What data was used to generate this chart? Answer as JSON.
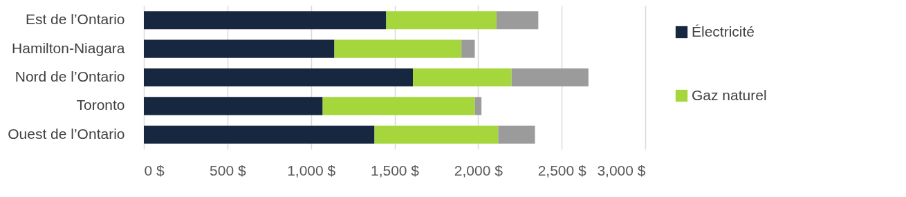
{
  "chart_data": {
    "type": "bar",
    "orientation": "horizontal",
    "stacked": true,
    "categories": [
      "Est de l’Ontario",
      "Hamilton-Niagara",
      "Nord de l’Ontario",
      "Toronto",
      "Ouest de l’Ontario"
    ],
    "series": [
      {
        "name": "Électricité",
        "color": "#17273f",
        "values": [
          1450,
          1140,
          1610,
          1070,
          1380
        ]
      },
      {
        "name": "Gaz naturel",
        "color": "#a5d63b",
        "values": [
          660,
          760,
          590,
          910,
          740
        ]
      },
      {
        "color": "#9b9b9b",
        "values": [
          250,
          80,
          460,
          40,
          220
        ]
      }
    ],
    "xlim": [
      0,
      3000
    ],
    "xticks": [
      {
        "value": 0,
        "label": "0 $"
      },
      {
        "value": 500,
        "label": "500 $"
      },
      {
        "value": 1000,
        "label": "1,000 $"
      },
      {
        "value": 1500,
        "label": "1,500 $"
      },
      {
        "value": 2000,
        "label": "2,000 $"
      },
      {
        "value": 2500,
        "label": "2,500 $"
      },
      {
        "value": 3000,
        "label": "3,000 $"
      }
    ],
    "grid": "x",
    "legend": "right"
  }
}
